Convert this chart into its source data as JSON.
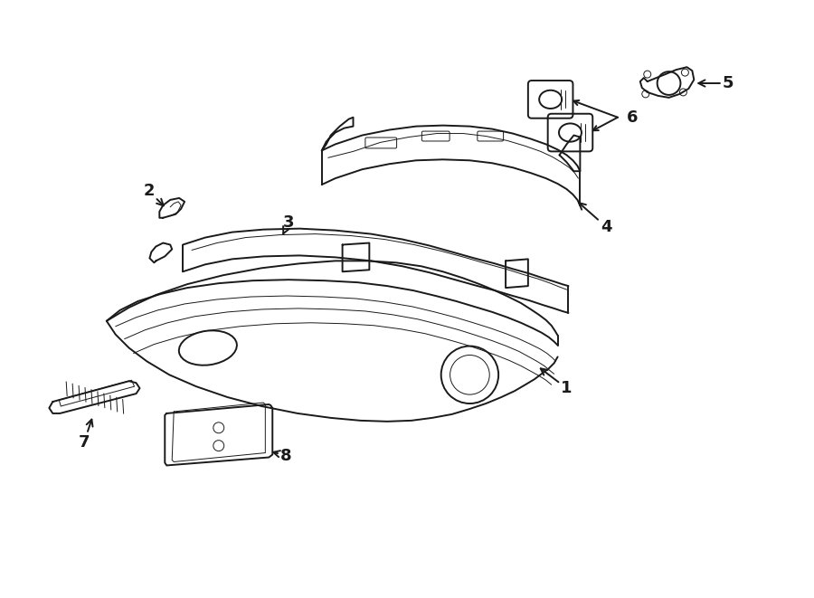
{
  "bg_color": "#ffffff",
  "line_color": "#1a1a1a",
  "lw": 1.4,
  "lw_thin": 0.7,
  "fig_w": 9.0,
  "fig_h": 6.61,
  "dpi": 100
}
